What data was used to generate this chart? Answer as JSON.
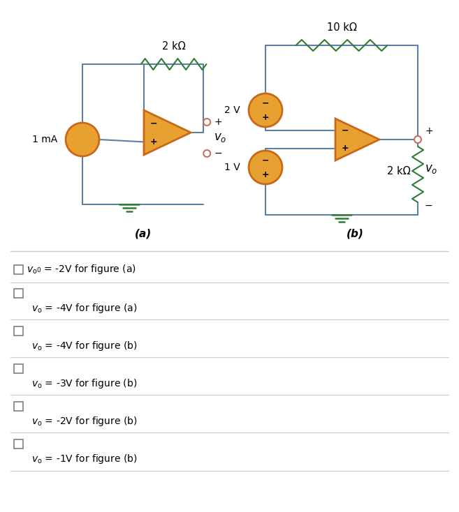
{
  "bg_color": "#ffffff",
  "line_color": "#5b7fa6",
  "resistor_color": "#2e7d32",
  "source_fill": "#e8a030",
  "source_border": "#c8691a",
  "opamp_color": "#e8a030",
  "opamp_border": "#c8691a",
  "terminal_color": "#c87060",
  "ground_color": "#2e7d32",
  "text_color": "#000000",
  "divider_color": "#cccccc",
  "checkbox_color": "#888888",
  "title_a": "(a)",
  "title_b": "(b)",
  "res_label_a": "2 kΩ",
  "res_label_b1": "10 kΩ",
  "res_label_b2": "2 kΩ",
  "src_label_a": "1 mA",
  "src_label_b1": "2 V",
  "src_label_b2": "1 V",
  "options": [
    {
      "same_line": true,
      "text": " v₀ = -2V for figure (a)"
    },
    {
      "same_line": false,
      "text": "v₀ = -4V for figure (a)"
    },
    {
      "same_line": false,
      "text": "v₀ = -4V for figure (b)"
    },
    {
      "same_line": false,
      "text": "v₀ = -3V for figure (b)"
    },
    {
      "same_line": false,
      "text": "v₀ = -2V for figure (b)"
    },
    {
      "same_line": false,
      "text": "v₀ = -1V for figure (b)"
    }
  ]
}
